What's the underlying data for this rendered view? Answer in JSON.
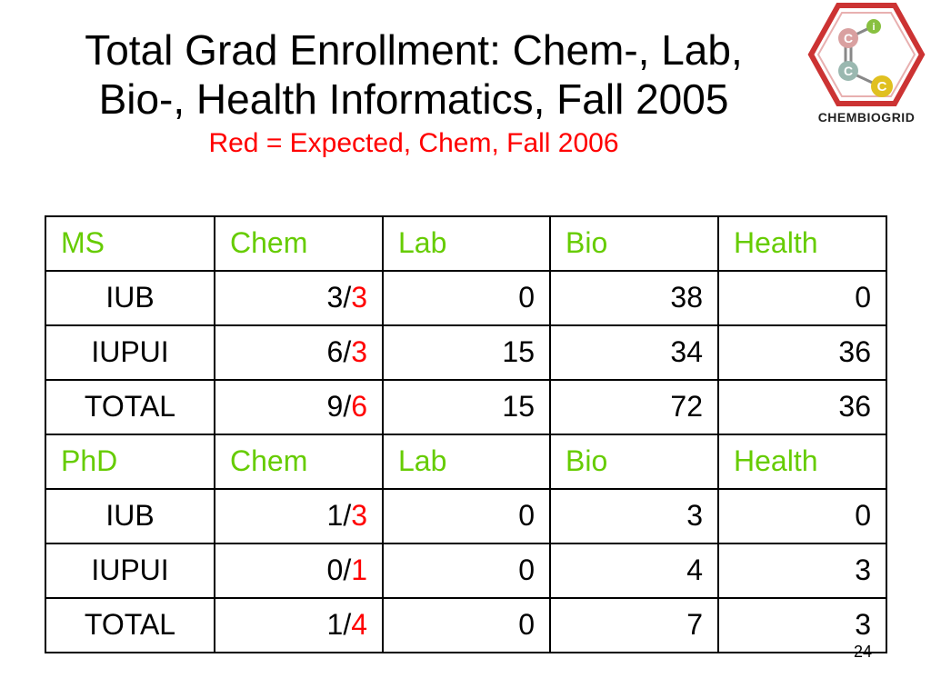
{
  "slide": {
    "title_line1": "Total Grad Enrollment: Chem-, Lab,",
    "title_line2": "Bio-, Health Informatics, Fall 2005",
    "subtitle": "Red = Expected, Chem, Fall 2006",
    "page_number": "24"
  },
  "logo": {
    "text": "CHEMBIOGRID",
    "letters": [
      "C",
      "i",
      "C",
      "C"
    ],
    "colors": {
      "hexagon": "#cc3333",
      "atom_c1": "#d9a0a0",
      "atom_i": "#88c040",
      "atom_c2": "#9ab8b0",
      "atom_c3": "#e0c020"
    }
  },
  "colors": {
    "header_green": "#66cc00",
    "expected_red": "#ff0000"
  },
  "table": {
    "ms": {
      "header": [
        "MS",
        "Chem",
        "Lab",
        "Bio",
        "Health"
      ],
      "rows": [
        {
          "label": "IUB",
          "chem_actual": "3",
          "chem_sep": "/",
          "chem_expected": "3",
          "lab": "0",
          "bio": "38",
          "health": "0"
        },
        {
          "label": "IUPUI",
          "chem_actual": "6",
          "chem_sep": "/",
          "chem_expected": "3",
          "lab": "15",
          "bio": "34",
          "health": "36"
        },
        {
          "label": "TOTAL",
          "chem_actual": "9",
          "chem_sep": "/",
          "chem_expected": "6",
          "lab": "15",
          "bio": "72",
          "health": "36"
        }
      ]
    },
    "phd": {
      "header": [
        "PhD",
        "Chem",
        "Lab",
        "Bio",
        "Health"
      ],
      "rows": [
        {
          "label": "IUB",
          "chem_actual": "1",
          "chem_sep": "/",
          "chem_expected": "3",
          "lab": "0",
          "bio": "3",
          "health": "0"
        },
        {
          "label": "IUPUI",
          "chem_actual": "0",
          "chem_sep": "/",
          "chem_expected": "1",
          "lab": "0",
          "bio": "4",
          "health": "3"
        },
        {
          "label": "TOTAL",
          "chem_actual": "1",
          "chem_sep": "/",
          "chem_expected": "4",
          "lab": "0",
          "bio": "7",
          "health": "3"
        }
      ]
    }
  }
}
